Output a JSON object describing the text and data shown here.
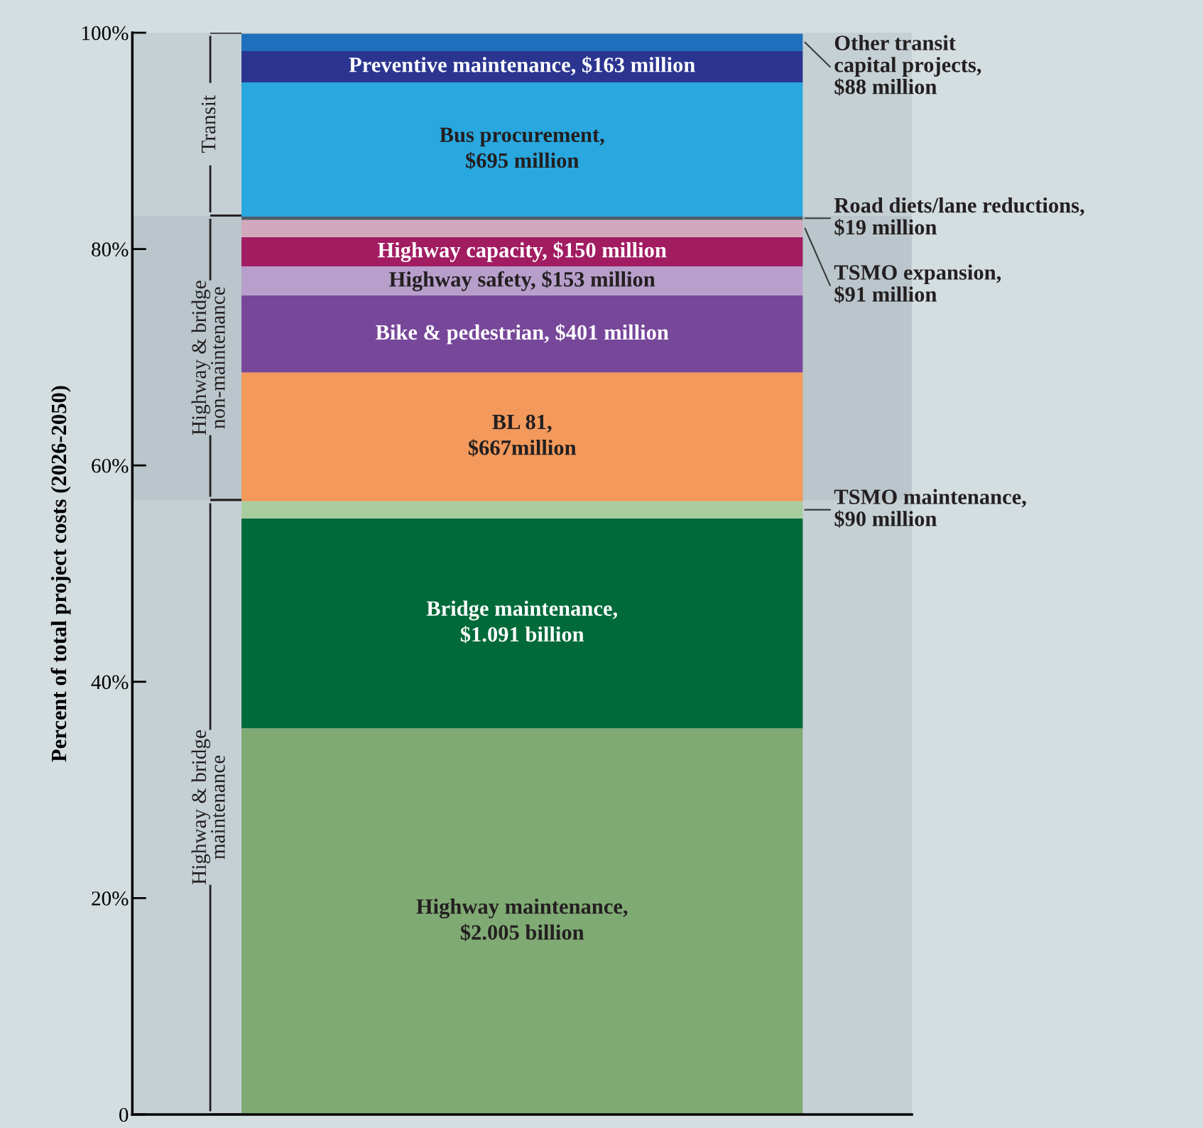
{
  "chart_data": {
    "type": "bar",
    "stacked": true,
    "categories": [
      null
    ],
    "ylabel": "Percent of total project costs (2026-2050)",
    "ylim": [
      0,
      100
    ],
    "yticks": [
      {
        "value": 0,
        "label": "0"
      },
      {
        "value": 20,
        "label": "20%"
      },
      {
        "value": 40,
        "label": "40%"
      },
      {
        "value": 60,
        "label": "60%"
      },
      {
        "value": 80,
        "label": "80%"
      },
      {
        "value": 100,
        "label": "100%"
      }
    ],
    "grid": false,
    "legend": false,
    "series": [
      {
        "color": "#80aa74",
        "values": [
          35.7
        ]
      },
      {
        "color": "#006a3a",
        "values": [
          19.4
        ]
      },
      {
        "color": "#aacda0",
        "values": [
          1.6
        ]
      },
      {
        "color": "#f2995b",
        "values": [
          11.9
        ]
      },
      {
        "color": "#77479a",
        "values": [
          7.1
        ]
      },
      {
        "color": "#b89fcb",
        "values": [
          2.7
        ]
      },
      {
        "color": "#a21c62",
        "values": [
          2.7
        ]
      },
      {
        "color": "#d2a8bd",
        "values": [
          1.6
        ]
      },
      {
        "color": "#4d5b66",
        "values": [
          0.3
        ]
      },
      {
        "color": "#29a8e0",
        "values": [
          12.4
        ]
      },
      {
        "color": "#2b3590",
        "values": [
          2.9
        ]
      },
      {
        "color": "#1f6fbd",
        "values": [
          1.6
        ]
      }
    ],
    "annotations": [
      "Highway maintenance,\n$2.005 billion",
      "Bridge maintenance,\n$1.091 billion",
      "TSMO maintenance,\n$90 million",
      "BL 81,\n$667million",
      "Bike & pedestrian, $401 million",
      "Highway safety, $153 million",
      "Highway capacity, $150 million",
      "TSMO expansion,\n$91 million",
      "Road diets/lane reductions,\n$19 million",
      "Bus procurement,\n$695 million",
      "Preventive maintenance, $163 million",
      "Other transit\ncapital projects,\n$88 million"
    ],
    "bands": [
      {
        "axis": "y",
        "from": 0,
        "to": 56.8,
        "label": "Highway & bridge\nmaintenance",
        "color": "#c5d0d4"
      },
      {
        "axis": "y",
        "from": 56.8,
        "to": 83.1,
        "label": "Highway & bridge\nnon-maintenance",
        "color": "#bac6cb"
      },
      {
        "axis": "y",
        "from": 83.1,
        "to": 100,
        "label": "Transit",
        "color": "#c5d0d4"
      }
    ]
  }
}
